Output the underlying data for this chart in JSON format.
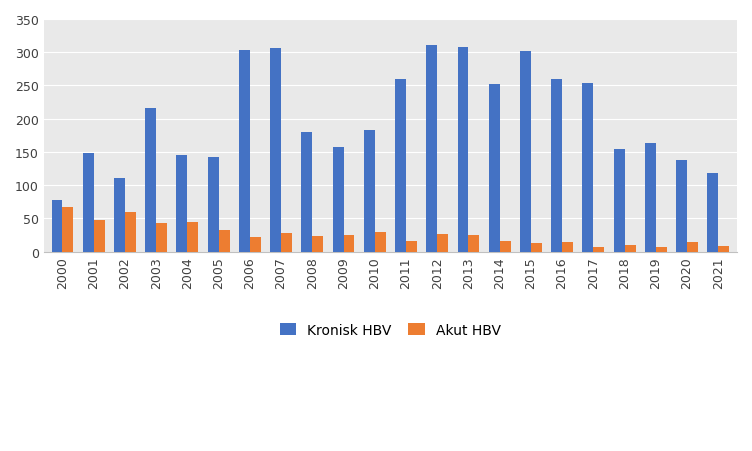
{
  "years": [
    2000,
    2001,
    2002,
    2003,
    2004,
    2005,
    2006,
    2007,
    2008,
    2009,
    2010,
    2011,
    2012,
    2013,
    2014,
    2015,
    2016,
    2017,
    2018,
    2019,
    2020,
    2021
  ],
  "kronisk_hbv": [
    78,
    148,
    111,
    216,
    146,
    143,
    303,
    306,
    180,
    157,
    183,
    259,
    311,
    308,
    252,
    302,
    260,
    254,
    155,
    163,
    138,
    118
  ],
  "akut_hbv": [
    67,
    48,
    59,
    43,
    45,
    32,
    22,
    28,
    24,
    25,
    30,
    16,
    26,
    25,
    16,
    13,
    15,
    7,
    10,
    7,
    15,
    8
  ],
  "kronisk_color": "#4472C4",
  "akut_color": "#ED7D31",
  "background_color": "#ffffff",
  "plot_bg_color": "#e9e9e9",
  "grid_color": "#ffffff",
  "ylim": [
    0,
    350
  ],
  "yticks": [
    0,
    50,
    100,
    150,
    200,
    250,
    300,
    350
  ],
  "legend_labels": [
    "Kronisk HBV",
    "Akut HBV"
  ],
  "bar_width": 0.35
}
